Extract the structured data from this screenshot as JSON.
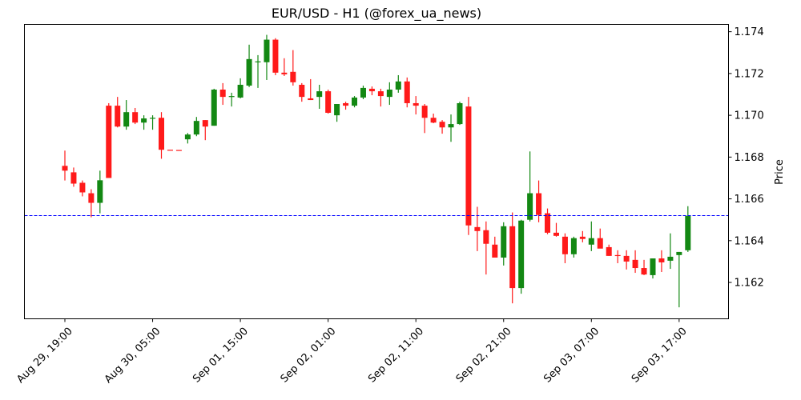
{
  "chart_data": {
    "type": "candlestick",
    "title": "EUR/USD - H1 (@forex_ua_news)",
    "xlabel": "",
    "ylabel": "Price",
    "ylim": [
      1.16026,
      1.17435
    ],
    "yaxis_position": "right",
    "y_ticks": [
      1.162,
      1.164,
      1.166,
      1.168,
      1.17,
      1.172,
      1.174
    ],
    "y_tick_labels": [
      "1.162",
      "1.164",
      "1.166",
      "1.168",
      "1.170",
      "1.172",
      "1.174"
    ],
    "x_ticks": [
      {
        "index": 0,
        "label": "Aug 29, 19:00"
      },
      {
        "index": 10,
        "label": "Aug 30, 05:00"
      },
      {
        "index": 20,
        "label": "Sep 01, 15:00"
      },
      {
        "index": 30,
        "label": "Sep 02, 01:00"
      },
      {
        "index": 40,
        "label": "Sep 02, 11:00"
      },
      {
        "index": 50,
        "label": "Sep 02, 21:00"
      },
      {
        "index": 60,
        "label": "Sep 03, 07:00"
      },
      {
        "index": 70,
        "label": "Sep 03, 17:00"
      }
    ],
    "grid": false,
    "legend": null,
    "reference_line": {
      "value": 1.1652,
      "style": "dashed",
      "color": "#0000ff"
    },
    "colors": {
      "up": "#138813",
      "down": "#ff1a1a",
      "reference": "#0000ff"
    },
    "candles": [
      {
        "o": 1.16758,
        "h": 1.16831,
        "l": 1.16688,
        "c": 1.16735
      },
      {
        "o": 1.16727,
        "h": 1.1675,
        "l": 1.16658,
        "c": 1.16673
      },
      {
        "o": 1.16677,
        "h": 1.16688,
        "l": 1.16612,
        "c": 1.16631
      },
      {
        "o": 1.16627,
        "h": 1.16646,
        "l": 1.16512,
        "c": 1.16581
      },
      {
        "o": 1.16581,
        "h": 1.16735,
        "l": 1.16531,
        "c": 1.16689
      },
      {
        "o": 1.17046,
        "h": 1.17058,
        "l": 1.16877,
        "c": 1.167
      },
      {
        "o": 1.17046,
        "h": 1.17088,
        "l": 1.16942,
        "c": 1.16946
      },
      {
        "o": 1.16946,
        "h": 1.17073,
        "l": 1.16931,
        "c": 1.17015
      },
      {
        "o": 1.17015,
        "h": 1.17035,
        "l": 1.16958,
        "c": 1.16965
      },
      {
        "o": 1.16965,
        "h": 1.17,
        "l": 1.16931,
        "c": 1.16985
      },
      {
        "o": 1.16985,
        "h": 1.17,
        "l": 1.16931,
        "c": 1.16988
      },
      {
        "o": 1.16988,
        "h": 1.17015,
        "l": 1.16792,
        "c": 1.16835
      },
      {
        "o": 1.16835,
        "h": 1.16835,
        "l": 1.16835,
        "c": 1.16834
      },
      {
        "o": 1.16834,
        "h": 1.16834,
        "l": 1.16834,
        "c": 1.16833
      },
      {
        "o": 1.16885,
        "h": 1.16915,
        "l": 1.16865,
        "c": 1.16908
      },
      {
        "o": 1.16908,
        "h": 1.16992,
        "l": 1.169,
        "c": 1.16973
      },
      {
        "o": 1.16977,
        "h": 1.16977,
        "l": 1.16881,
        "c": 1.16946
      },
      {
        "o": 1.1695,
        "h": 1.17127,
        "l": 1.1695,
        "c": 1.17123
      },
      {
        "o": 1.17123,
        "h": 1.17154,
        "l": 1.1705,
        "c": 1.17088
      },
      {
        "o": 1.17088,
        "h": 1.17108,
        "l": 1.17042,
        "c": 1.17092
      },
      {
        "o": 1.17085,
        "h": 1.17177,
        "l": 1.17081,
        "c": 1.17146
      },
      {
        "o": 1.17142,
        "h": 1.17338,
        "l": 1.17135,
        "c": 1.17269
      },
      {
        "o": 1.17258,
        "h": 1.17288,
        "l": 1.17131,
        "c": 1.17258
      },
      {
        "o": 1.17254,
        "h": 1.17385,
        "l": 1.17169,
        "c": 1.17362
      },
      {
        "o": 1.17362,
        "h": 1.17369,
        "l": 1.17192,
        "c": 1.17204
      },
      {
        "o": 1.17204,
        "h": 1.17273,
        "l": 1.17188,
        "c": 1.17196
      },
      {
        "o": 1.17208,
        "h": 1.17312,
        "l": 1.17142,
        "c": 1.17158
      },
      {
        "o": 1.17146,
        "h": 1.17154,
        "l": 1.17065,
        "c": 1.17088
      },
      {
        "o": 1.17081,
        "h": 1.17173,
        "l": 1.17073,
        "c": 1.17073
      },
      {
        "o": 1.17088,
        "h": 1.17146,
        "l": 1.17031,
        "c": 1.17115
      },
      {
        "o": 1.17115,
        "h": 1.17123,
        "l": 1.17008,
        "c": 1.17012
      },
      {
        "o": 1.17,
        "h": 1.1705,
        "l": 1.16969,
        "c": 1.17054
      },
      {
        "o": 1.17058,
        "h": 1.17065,
        "l": 1.17027,
        "c": 1.17046
      },
      {
        "o": 1.17046,
        "h": 1.17092,
        "l": 1.17038,
        "c": 1.17085
      },
      {
        "o": 1.17085,
        "h": 1.17142,
        "l": 1.17077,
        "c": 1.17131
      },
      {
        "o": 1.17127,
        "h": 1.17138,
        "l": 1.17096,
        "c": 1.17115
      },
      {
        "o": 1.17115,
        "h": 1.17127,
        "l": 1.17042,
        "c": 1.17092
      },
      {
        "o": 1.17088,
        "h": 1.17158,
        "l": 1.1705,
        "c": 1.17123
      },
      {
        "o": 1.17123,
        "h": 1.17192,
        "l": 1.17108,
        "c": 1.17162
      },
      {
        "o": 1.17162,
        "h": 1.17181,
        "l": 1.17038,
        "c": 1.17058
      },
      {
        "o": 1.17058,
        "h": 1.17092,
        "l": 1.17004,
        "c": 1.17046
      },
      {
        "o": 1.17046,
        "h": 1.17054,
        "l": 1.16915,
        "c": 1.16988
      },
      {
        "o": 1.16988,
        "h": 1.17008,
        "l": 1.16962,
        "c": 1.16965
      },
      {
        "o": 1.16969,
        "h": 1.16977,
        "l": 1.16912,
        "c": 1.16942
      },
      {
        "o": 1.16942,
        "h": 1.17004,
        "l": 1.16873,
        "c": 1.16958
      },
      {
        "o": 1.16958,
        "h": 1.17065,
        "l": 1.16954,
        "c": 1.17058
      },
      {
        "o": 1.17042,
        "h": 1.17088,
        "l": 1.16427,
        "c": 1.16473
      },
      {
        "o": 1.16465,
        "h": 1.16562,
        "l": 1.1635,
        "c": 1.16446
      },
      {
        "o": 1.1645,
        "h": 1.16492,
        "l": 1.16238,
        "c": 1.16385
      },
      {
        "o": 1.16381,
        "h": 1.16419,
        "l": 1.16323,
        "c": 1.16319
      },
      {
        "o": 1.16319,
        "h": 1.16488,
        "l": 1.16281,
        "c": 1.16469
      },
      {
        "o": 1.16469,
        "h": 1.16535,
        "l": 1.161,
        "c": 1.16173
      },
      {
        "o": 1.16173,
        "h": 1.165,
        "l": 1.16146,
        "c": 1.16496
      },
      {
        "o": 1.165,
        "h": 1.16827,
        "l": 1.16492,
        "c": 1.16627
      },
      {
        "o": 1.16627,
        "h": 1.16688,
        "l": 1.16488,
        "c": 1.16523
      },
      {
        "o": 1.16531,
        "h": 1.16554,
        "l": 1.16431,
        "c": 1.16438
      },
      {
        "o": 1.16438,
        "h": 1.16485,
        "l": 1.16419,
        "c": 1.16423
      },
      {
        "o": 1.16419,
        "h": 1.16435,
        "l": 1.16292,
        "c": 1.16335
      },
      {
        "o": 1.16335,
        "h": 1.16419,
        "l": 1.16319,
        "c": 1.16412
      },
      {
        "o": 1.16419,
        "h": 1.16446,
        "l": 1.16392,
        "c": 1.16408
      },
      {
        "o": 1.16381,
        "h": 1.16492,
        "l": 1.1635,
        "c": 1.16412
      },
      {
        "o": 1.16412,
        "h": 1.16458,
        "l": 1.16365,
        "c": 1.16362
      },
      {
        "o": 1.16369,
        "h": 1.16381,
        "l": 1.16327,
        "c": 1.16327
      },
      {
        "o": 1.16331,
        "h": 1.16354,
        "l": 1.16292,
        "c": 1.16327
      },
      {
        "o": 1.16327,
        "h": 1.16354,
        "l": 1.16262,
        "c": 1.163
      },
      {
        "o": 1.16308,
        "h": 1.16354,
        "l": 1.16246,
        "c": 1.16269
      },
      {
        "o": 1.16269,
        "h": 1.16308,
        "l": 1.16235,
        "c": 1.16238
      },
      {
        "o": 1.16235,
        "h": 1.16315,
        "l": 1.16219,
        "c": 1.16315
      },
      {
        "o": 1.16315,
        "h": 1.16354,
        "l": 1.1625,
        "c": 1.16296
      },
      {
        "o": 1.16304,
        "h": 1.16435,
        "l": 1.16265,
        "c": 1.16323
      },
      {
        "o": 1.16331,
        "h": 1.16346,
        "l": 1.16081,
        "c": 1.16346
      },
      {
        "o": 1.16354,
        "h": 1.16565,
        "l": 1.16346,
        "c": 1.16519
      }
    ]
  }
}
